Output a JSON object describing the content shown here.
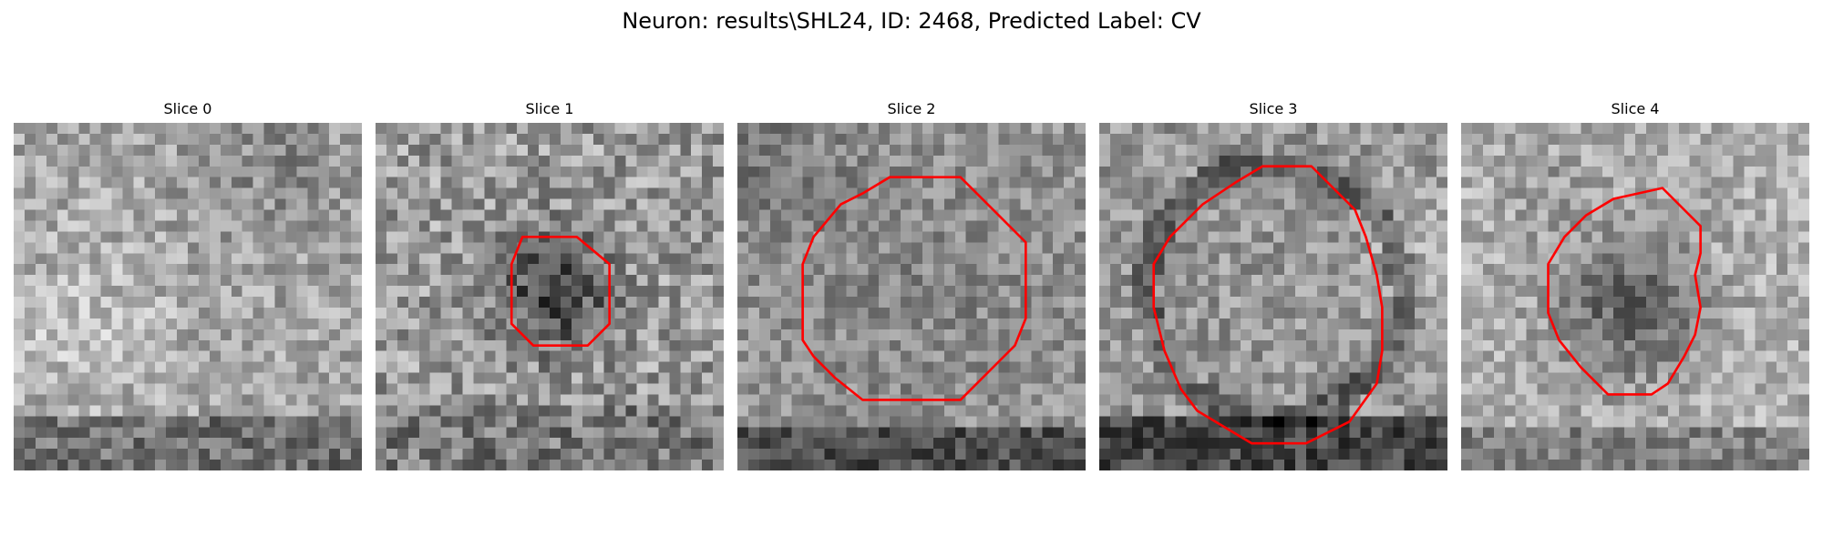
{
  "figure": {
    "title": "Neuron: results\\SHL24, ID: 2468, Predicted Label: CV",
    "contour_color": "#ff0000",
    "colormap": "grayscale"
  },
  "slices": [
    {
      "title": "Slice 0",
      "has_contour": false
    },
    {
      "title": "Slice 1",
      "has_contour": true
    },
    {
      "title": "Slice 2",
      "has_contour": true
    },
    {
      "title": "Slice 3",
      "has_contour": true
    },
    {
      "title": "Slice 4",
      "has_contour": true
    }
  ]
}
